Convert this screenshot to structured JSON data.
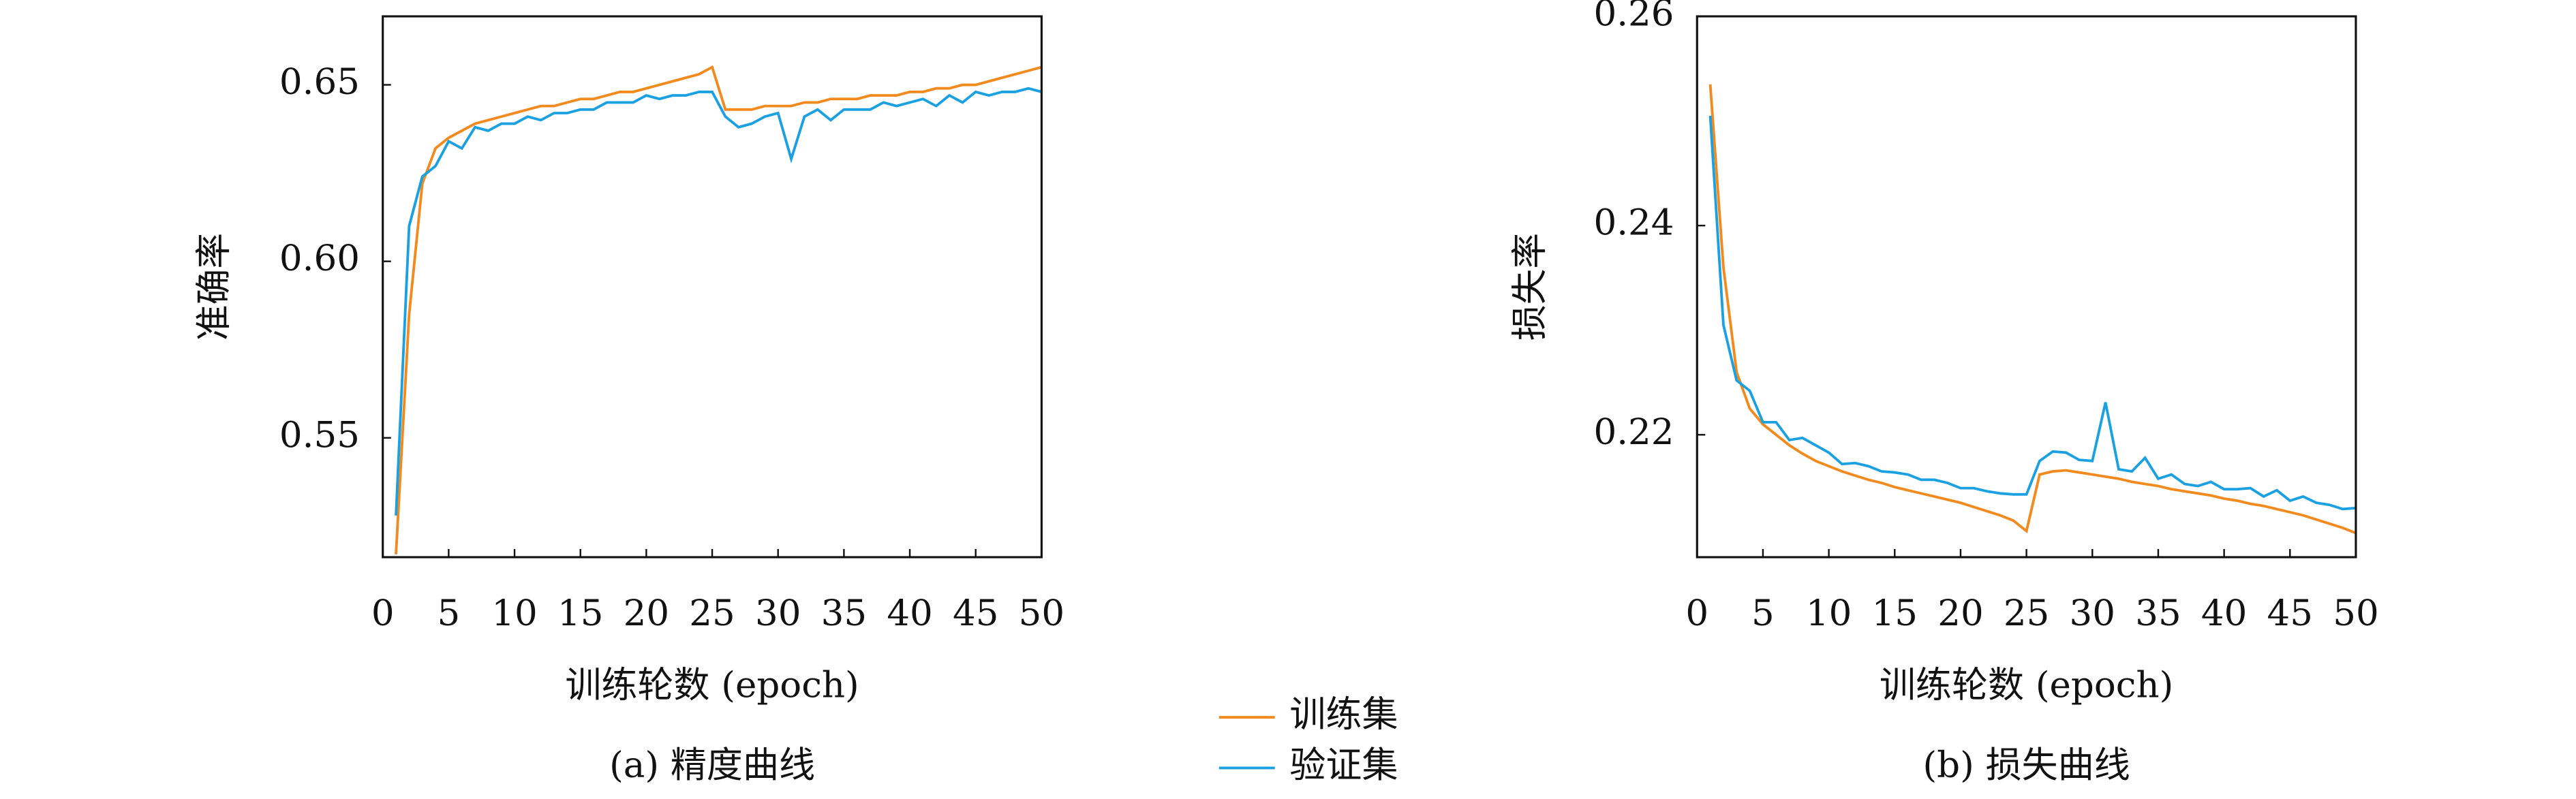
{
  "chart_data": [
    {
      "type": "line",
      "caption": "(a) 精度曲线",
      "x_label": "训练轮数 (epoch)",
      "y_label": "准确率",
      "x": [
        1,
        2,
        3,
        4,
        5,
        6,
        7,
        8,
        9,
        10,
        11,
        12,
        13,
        14,
        15,
        16,
        17,
        18,
        19,
        20,
        21,
        22,
        23,
        24,
        25,
        26,
        27,
        28,
        29,
        30,
        31,
        32,
        33,
        34,
        35,
        36,
        37,
        38,
        39,
        40,
        41,
        42,
        43,
        44,
        45,
        46,
        47,
        48,
        49,
        50
      ],
      "series": [
        {
          "name": "训练集",
          "color": "#f28a1e",
          "values": [
            0.517,
            0.585,
            0.622,
            0.632,
            0.635,
            0.637,
            0.639,
            0.64,
            0.641,
            0.642,
            0.643,
            0.644,
            0.644,
            0.645,
            0.646,
            0.646,
            0.647,
            0.648,
            0.648,
            0.649,
            0.65,
            0.651,
            0.652,
            0.653,
            0.655,
            0.643,
            0.643,
            0.643,
            0.644,
            0.644,
            0.644,
            0.645,
            0.645,
            0.646,
            0.646,
            0.646,
            0.647,
            0.647,
            0.647,
            0.648,
            0.648,
            0.649,
            0.649,
            0.65,
            0.65,
            0.651,
            0.652,
            0.653,
            0.654,
            0.655
          ]
        },
        {
          "name": "验证集",
          "color": "#1ba1e2",
          "values": [
            0.528,
            0.61,
            0.624,
            0.627,
            0.634,
            0.632,
            0.638,
            0.637,
            0.639,
            0.639,
            0.641,
            0.64,
            0.642,
            0.642,
            0.643,
            0.643,
            0.645,
            0.645,
            0.645,
            0.647,
            0.646,
            0.647,
            0.647,
            0.648,
            0.648,
            0.641,
            0.638,
            0.639,
            0.641,
            0.642,
            0.629,
            0.641,
            0.643,
            0.64,
            0.643,
            0.643,
            0.643,
            0.645,
            0.644,
            0.645,
            0.646,
            0.644,
            0.647,
            0.645,
            0.648,
            0.647,
            0.648,
            0.648,
            0.649,
            0.648
          ]
        }
      ],
      "xlim": [
        0,
        50
      ],
      "xticks": [
        0,
        5,
        10,
        15,
        20,
        25,
        30,
        35,
        40,
        45,
        50
      ],
      "ylim": [
        0.5162,
        0.6694
      ],
      "yticks": [
        0.55,
        {
          "value": 0.6,
          "label": "0.60"
        },
        0.65
      ]
    },
    {
      "type": "line",
      "caption": "(b) 损失曲线",
      "x_label": "训练轮数 (epoch)",
      "y_label": "损失率",
      "x": [
        1,
        2,
        3,
        4,
        5,
        6,
        7,
        8,
        9,
        10,
        11,
        12,
        13,
        14,
        15,
        16,
        17,
        18,
        19,
        20,
        21,
        22,
        23,
        24,
        25,
        26,
        27,
        28,
        29,
        30,
        31,
        32,
        33,
        34,
        35,
        36,
        37,
        38,
        39,
        40,
        41,
        42,
        43,
        44,
        45,
        46,
        47,
        48,
        49,
        50
      ],
      "series": [
        {
          "color": "#f28a1e",
          "values": [
            0.2535,
            0.236,
            0.226,
            0.2225,
            0.221,
            0.22,
            0.219,
            0.2182,
            0.2175,
            0.217,
            0.2165,
            0.2161,
            0.2157,
            0.2154,
            0.215,
            0.2147,
            0.2144,
            0.2141,
            0.2138,
            0.2135,
            0.2131,
            0.2127,
            0.2123,
            0.2118,
            0.2108,
            0.2162,
            0.2165,
            0.2166,
            0.2164,
            0.2162,
            0.216,
            0.2158,
            0.2155,
            0.2153,
            0.2151,
            0.2148,
            0.2146,
            0.2144,
            0.2142,
            0.2139,
            0.2137,
            0.2134,
            0.2132,
            0.2129,
            0.2126,
            0.2123,
            0.2119,
            0.2115,
            0.2111,
            0.2106
          ]
        },
        {
          "color": "#1ba1e2",
          "values": [
            0.2505,
            0.2305,
            0.2252,
            0.2242,
            0.2212,
            0.2212,
            0.2195,
            0.2197,
            0.219,
            0.2183,
            0.2172,
            0.2173,
            0.217,
            0.2165,
            0.2164,
            0.2162,
            0.2157,
            0.2157,
            0.2154,
            0.2149,
            0.2149,
            0.2146,
            0.2144,
            0.2143,
            0.2143,
            0.2175,
            0.2184,
            0.2183,
            0.2176,
            0.2175,
            0.2231,
            0.2167,
            0.2165,
            0.2178,
            0.2158,
            0.2162,
            0.2153,
            0.2151,
            0.2155,
            0.2148,
            0.2148,
            0.2149,
            0.2141,
            0.2147,
            0.2137,
            0.2141,
            0.2135,
            0.2133,
            0.2129,
            0.213
          ]
        }
      ],
      "xlim": [
        0,
        50
      ],
      "xticks": [
        0,
        5,
        10,
        15,
        20,
        25,
        30,
        35,
        40,
        45,
        50
      ],
      "ylim": [
        0.2083,
        0.26
      ],
      "yticks": [
        0.22,
        0.24,
        0.26
      ]
    }
  ]
}
